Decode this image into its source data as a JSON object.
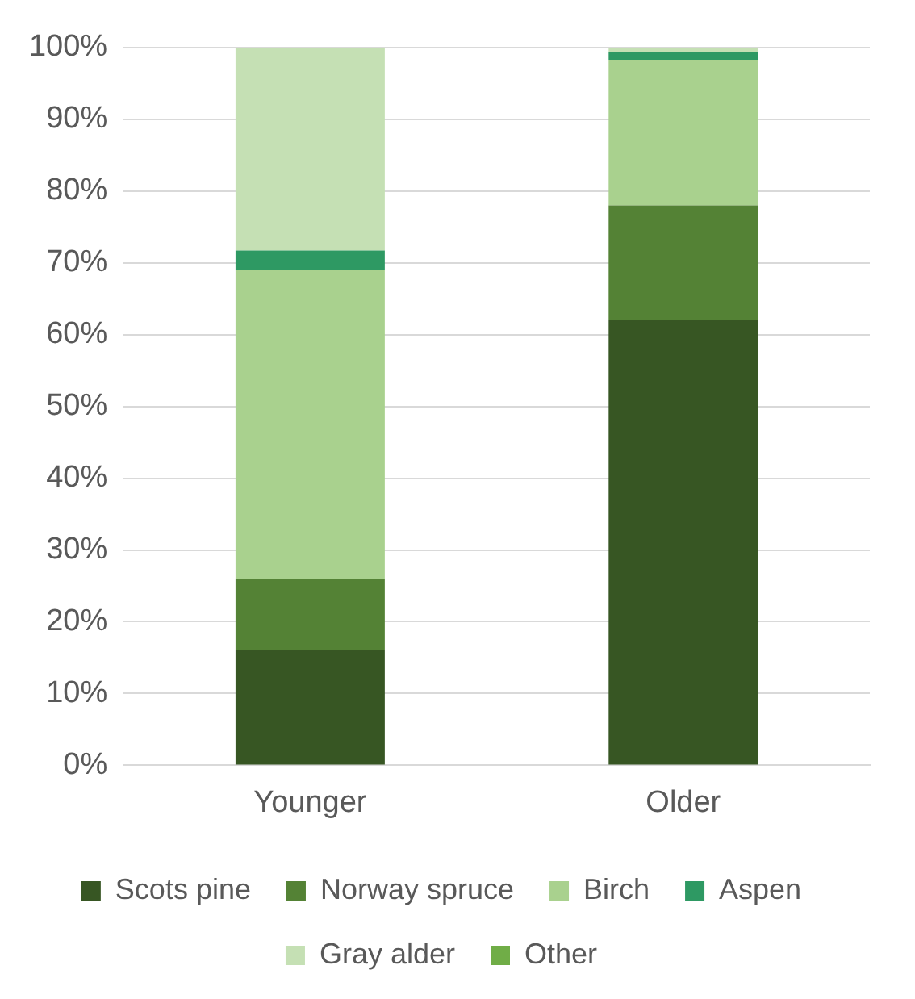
{
  "chart_data": {
    "type": "bar",
    "stacked": true,
    "categories": [
      "Younger",
      "Older"
    ],
    "series": [
      {
        "name": "Scots pine",
        "color": "#375623",
        "values": [
          16,
          62
        ]
      },
      {
        "name": "Norway spruce",
        "color": "#548235",
        "values": [
          10,
          16
        ]
      },
      {
        "name": "Birch",
        "color": "#a9d18e",
        "values": [
          43,
          20.3
        ]
      },
      {
        "name": "Aspen",
        "color": "#2e9963",
        "values": [
          2.7,
          1.1
        ]
      },
      {
        "name": "Gray alder",
        "color": "#c5e0b4",
        "values": [
          28.3,
          0.6
        ]
      },
      {
        "name": "Other",
        "color": "#70ad47",
        "values": [
          0,
          0
        ]
      }
    ],
    "ylim": [
      0,
      100
    ],
    "yticks": [
      {
        "value": 0,
        "label": "0%"
      },
      {
        "value": 10,
        "label": "10%"
      },
      {
        "value": 20,
        "label": "20%"
      },
      {
        "value": 30,
        "label": "30%"
      },
      {
        "value": 40,
        "label": "40%"
      },
      {
        "value": 50,
        "label": "50%"
      },
      {
        "value": 60,
        "label": "60%"
      },
      {
        "value": 70,
        "label": "70%"
      },
      {
        "value": 80,
        "label": "80%"
      },
      {
        "value": 90,
        "label": "90%"
      },
      {
        "value": 100,
        "label": "100%"
      }
    ],
    "grid": "y",
    "legend": "bottom"
  }
}
